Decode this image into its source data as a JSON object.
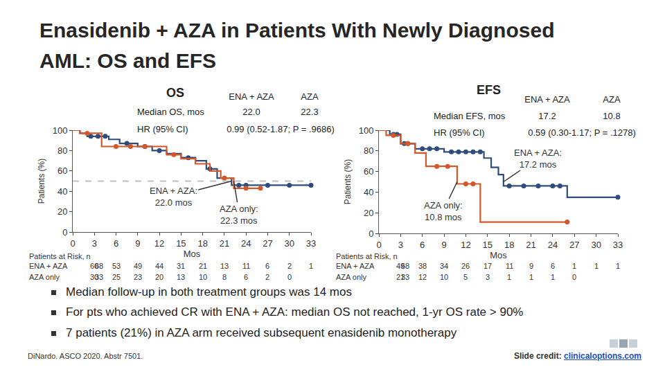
{
  "title": "Enasidenib + AZA in Patients With Newly Diagnosed AML: OS and EFS",
  "chart_data": [
    {
      "type": "line",
      "title": "OS",
      "x_label": "Mos",
      "y_label": "Patients (%)",
      "xlim": [
        0,
        33
      ],
      "xticks": [
        0,
        3,
        6,
        9,
        12,
        15,
        18,
        21,
        24,
        27,
        30,
        33
      ],
      "ylim": [
        0,
        100
      ],
      "yticks": [
        0,
        20,
        40,
        60,
        80,
        100
      ],
      "grid": false,
      "median_line": 50,
      "summary": {
        "rows": [
          {
            "label": "Median OS, mos",
            "values": [
              "22.0",
              "22.3"
            ]
          },
          {
            "label": "HR (95% CI)",
            "text": "0.99 (0.52-1.87; P = .9686)"
          }
        ]
      },
      "series": [
        {
          "name": "ENA + AZA",
          "color": "#2e4d7b",
          "marker": "circle",
          "line_style": "solid",
          "x": [
            0,
            1,
            2,
            5,
            6.5,
            9,
            11,
            13,
            15,
            17,
            18.5,
            20,
            22,
            33
          ],
          "values": [
            100,
            97,
            94,
            91,
            87,
            84,
            80,
            77,
            73,
            70,
            62,
            53,
            46,
            46
          ],
          "censored": {
            "x": [
              2.5,
              3.5,
              4.5,
              7.5,
              10,
              12,
              16,
              19,
              23,
              24,
              27,
              30,
              33
            ],
            "values": [
              94,
              94,
              94,
              87,
              84,
              80,
              73,
              62,
              46,
              46,
              46,
              46,
              46
            ]
          }
        },
        {
          "name": "AZA",
          "color": "#d2572a",
          "marker": "circle",
          "line_style": "solid",
          "x": [
            0,
            1,
            4,
            13,
            15,
            17,
            19,
            20.5,
            22.3,
            26
          ],
          "values": [
            100,
            97,
            84,
            76,
            72,
            67,
            60,
            53,
            43,
            43
          ],
          "censored": {
            "x": [
              2,
              6,
              8,
              10,
              14,
              21,
              24,
              26
            ],
            "values": [
              97,
              84,
              84,
              84,
              76,
              53,
              43,
              43
            ]
          }
        }
      ],
      "annotations": [
        {
          "text": "ENA + AZA:\n22.0 mos",
          "x": 22.0,
          "y": 50
        },
        {
          "text": "AZA only:\n22.3 mos",
          "x": 22.3,
          "y": 50
        }
      ],
      "risk_table": {
        "label": "Patients at Risk, n",
        "rows": [
          {
            "name": "ENA + AZA",
            "values": [
              68,
              60,
              53,
              49,
              44,
              31,
              21,
              13,
              11,
              6,
              2,
              1
            ]
          },
          {
            "name": "AZA only",
            "values": [
              33,
              30,
              25,
              23,
              20,
              13,
              10,
              8,
              6,
              2,
              0
            ]
          }
        ]
      }
    },
    {
      "type": "line",
      "title": "EFS",
      "x_label": "Mos",
      "y_label": "Patients (%)",
      "xlim": [
        0,
        33
      ],
      "xticks": [
        0,
        3,
        6,
        9,
        12,
        15,
        18,
        21,
        24,
        27,
        30,
        33
      ],
      "ylim": [
        0,
        100
      ],
      "yticks": [
        0,
        20,
        40,
        60,
        80,
        100
      ],
      "grid": false,
      "summary": {
        "rows": [
          {
            "label": "Median EFS, mos",
            "values": [
              "17.2",
              "10.8"
            ]
          },
          {
            "label": "HR (95% CI)",
            "text": "0.59 (0.30-1.17; P = .1278)"
          }
        ]
      },
      "series": [
        {
          "name": "ENA + AZA",
          "color": "#2e4d7b",
          "marker": "circle",
          "line_style": "solid",
          "x": [
            0,
            1.5,
            3,
            5,
            9,
            14.5,
            15.5,
            16.5,
            17.2,
            26,
            33
          ],
          "values": [
            100,
            96,
            87,
            82,
            79,
            73,
            64,
            57,
            46,
            35,
            35
          ],
          "censored": {
            "x": [
              2,
              2.5,
              3.5,
              4,
              6,
              7,
              8,
              10,
              11,
              12,
              13,
              14,
              18,
              20,
              22,
              24,
              25,
              33
            ],
            "values": [
              96,
              96,
              87,
              87,
              82,
              82,
              82,
              79,
              79,
              79,
              79,
              79,
              46,
              46,
              46,
              46,
              46,
              35
            ]
          }
        },
        {
          "name": "AZA",
          "color": "#d2572a",
          "marker": "circle",
          "line_style": "solid",
          "x": [
            0,
            1,
            3,
            5,
            6.5,
            10.8,
            14,
            26
          ],
          "values": [
            100,
            95,
            87,
            78,
            65,
            48,
            11,
            11
          ],
          "censored": {
            "x": [
              2,
              4,
              8,
              9.5,
              12,
              13,
              26
            ],
            "values": [
              95,
              87,
              65,
              65,
              48,
              48,
              11
            ]
          }
        }
      ],
      "annotations": [
        {
          "text": "ENA + AZA:\n17.2 mos",
          "x": 17.2,
          "y": 50
        },
        {
          "text": "AZA only:\n10.8 mos",
          "x": 10.8,
          "y": 50
        }
      ],
      "risk_table": {
        "label": "Patients at Risk, n",
        "rows": [
          {
            "name": "ENA + AZA",
            "values": [
              68,
              49,
              38,
              34,
              26,
              17,
              11,
              9,
              6,
              1,
              1,
              1
            ]
          },
          {
            "name": "AZA only",
            "values": [
              33,
              21,
              12,
              10,
              5,
              3,
              1,
              1,
              1,
              0
            ]
          }
        ]
      }
    }
  ],
  "bullets": [
    "Median follow-up in both treatment groups was 14 mos",
    "For pts who achieved CR with ENA + AZA: median OS not reached, 1-yr OS rate > 90%",
    "7 patients (21%) in AZA arm received subsequent enasidenib monotherapy"
  ],
  "citation": "DiNardo. ASCO 2020. Abstr 7501.",
  "credit": {
    "label": "Slide credit:",
    "link": "clinicaloptions.com"
  }
}
